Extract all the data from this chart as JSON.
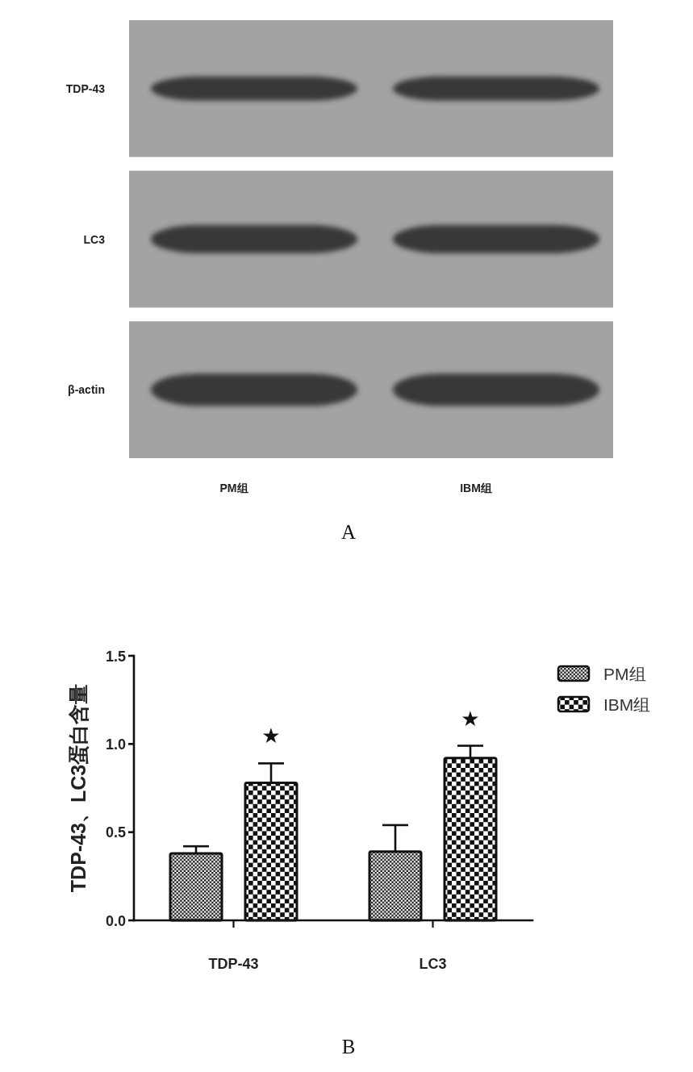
{
  "chart_data": [
    {
      "type": "other",
      "categories": [
        "PM组",
        "IBM组"
      ],
      "y_categories": [
        "TDP-43",
        "LC3",
        "β-actin"
      ],
      "annotations": [
        "A"
      ]
    },
    {
      "type": "bar",
      "categories": [
        "TDP-43",
        "LC3"
      ],
      "series": [
        {
          "name": "PM组",
          "color": "#111111",
          "values": [
            0.38,
            0.39
          ],
          "errors": [
            [
              0.38,
              0.42
            ],
            [
              0.39,
              0.54
            ]
          ]
        },
        {
          "name": "IBM组",
          "color": "#111111",
          "values": [
            0.78,
            0.92
          ],
          "errors": [
            [
              0.78,
              0.89
            ],
            [
              0.92,
              0.99
            ]
          ]
        }
      ],
      "ylabel": "TDP-43、LC3蛋白含量",
      "ylim": [
        0,
        1.5
      ],
      "yticks": [
        {
          "value": 0,
          "label": "0.0"
        },
        {
          "value": 0.5,
          "label": "0.5"
        },
        {
          "value": 1,
          "label": "1.0"
        },
        {
          "value": 1.5,
          "label": "1.5"
        }
      ],
      "legend": "top right",
      "annotations": [
        "★",
        "★",
        "B"
      ]
    }
  ]
}
